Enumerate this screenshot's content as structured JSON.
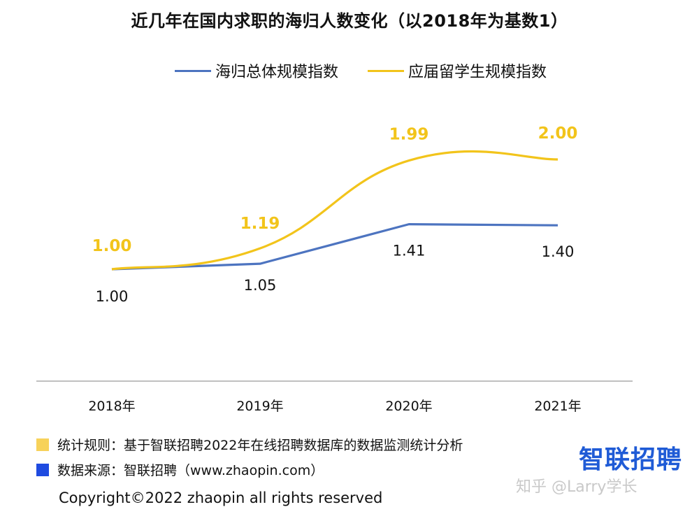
{
  "title": "近几年在国内求职的海归人数变化（以2018年为基数1）",
  "colors": {
    "blue": "#4d74c0",
    "yellow": "#f2c41b",
    "yellow_square": "#f7d25a",
    "blue_square": "#1f4be0"
  },
  "chart_data": {
    "type": "line",
    "title": "近几年在国内求职的海归人数变化（以2018年为基数1）",
    "categories": [
      "2018年",
      "2019年",
      "2020年",
      "2021年"
    ],
    "series": [
      {
        "name": "海归总体规模指数",
        "values": [
          1.0,
          1.05,
          1.41,
          1.4
        ],
        "labels": [
          "1.00",
          "1.05",
          "1.41",
          "1.40"
        ],
        "color": "#4d74c0"
      },
      {
        "name": "应届留学生规模指数",
        "values": [
          1.0,
          1.19,
          1.99,
          2.0
        ],
        "labels": [
          "1.00",
          "1.19",
          "1.99",
          "2.00"
        ],
        "color": "#f2c41b"
      }
    ],
    "legend_position": "top",
    "grid": false
  },
  "footnotes": {
    "rule": "统计规则：基于智联招聘2022年在线招聘数据库的数据监测统计分析",
    "source": "数据来源：智联招聘（www.zhaopin.com）"
  },
  "copyright": "Copyright©2022 zhaopin all rights reserved",
  "brand": "智联招聘",
  "watermark": "知乎 @Larry学长"
}
